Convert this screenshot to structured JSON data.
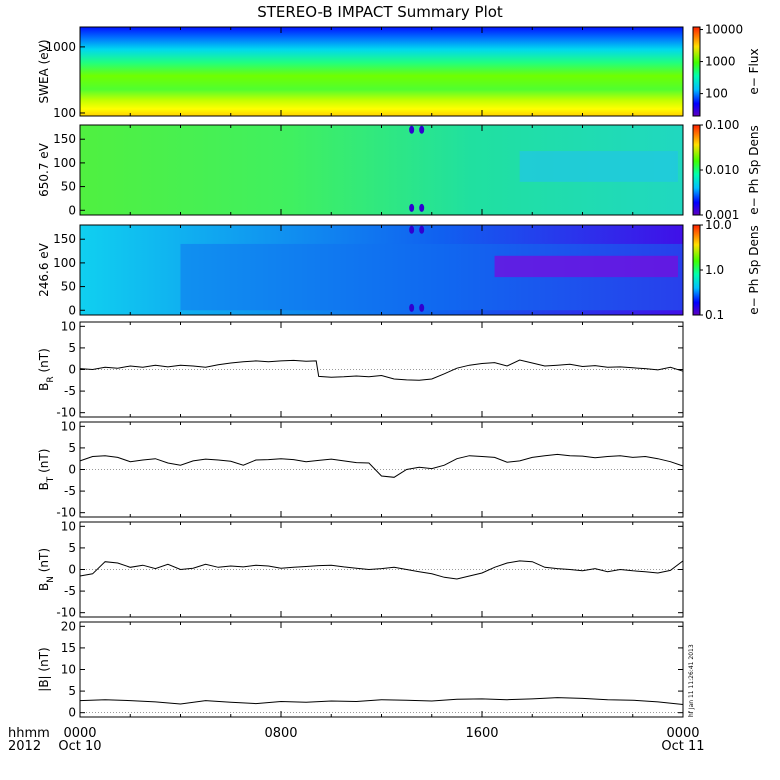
{
  "title": "STEREO-B IMPACT Summary Plot",
  "stamp": "hf Jan 11 11:26:41 2013",
  "x_axis": {
    "ticks": [
      "0000",
      "0800",
      "1600",
      "0000"
    ],
    "dates": [
      "Oct 10",
      "",
      "",
      "Oct 11"
    ],
    "unit_label": "hhmm",
    "year_label": "2012",
    "range_hours": [
      0,
      24
    ]
  },
  "colors": {
    "trace": "#000000"
  },
  "chart_data": [
    {
      "type": "heatmap",
      "name": "swea",
      "ylabel": "SWEA (eV)",
      "yscale": "log",
      "ylim": [
        90,
        2000
      ],
      "yticks": [
        {
          "v": 100,
          "label": "100"
        },
        {
          "v": 1000,
          "label": "1000"
        }
      ],
      "colorbar": {
        "label": "e− Flux",
        "scale": "log",
        "range": [
          20,
          12000
        ],
        "ticks": [
          {
            "v": 100,
            "label": "100"
          },
          {
            "v": 1000,
            "label": "1000"
          },
          {
            "v": 10000,
            "label": "10000"
          }
        ]
      }
    },
    {
      "type": "heatmap",
      "name": "pad650",
      "ylabel": "650.7 eV",
      "yscale": "linear",
      "ylim": [
        -10,
        180
      ],
      "yticks": [
        {
          "v": 0,
          "label": "0"
        },
        {
          "v": 50,
          "label": "50"
        },
        {
          "v": 100,
          "label": "100"
        },
        {
          "v": 150,
          "label": "150"
        }
      ],
      "colorbar": {
        "label": "e− Ph Sp Dens",
        "scale": "log",
        "range": [
          0.001,
          0.1
        ],
        "ticks": [
          {
            "v": 0.001,
            "label": "0.001"
          },
          {
            "v": 0.01,
            "label": "0.010"
          },
          {
            "v": 0.1,
            "label": "0.100"
          }
        ]
      }
    },
    {
      "type": "heatmap",
      "name": "pad246",
      "ylabel": "246.6 eV",
      "yscale": "linear",
      "ylim": [
        -10,
        180
      ],
      "yticks": [
        {
          "v": 0,
          "label": "0"
        },
        {
          "v": 50,
          "label": "50"
        },
        {
          "v": 100,
          "label": "100"
        },
        {
          "v": 150,
          "label": "150"
        }
      ],
      "colorbar": {
        "label": "e− Ph Sp Dens",
        "scale": "log",
        "range": [
          0.1,
          10
        ],
        "ticks": [
          {
            "v": 0.1,
            "label": "0.1"
          },
          {
            "v": 1,
            "label": "1.0"
          },
          {
            "v": 10,
            "label": "10.0"
          }
        ]
      }
    },
    {
      "type": "line",
      "name": "br",
      "ylabel": "B",
      "ylabel_sub": "R",
      "ylabel_unit": "(nT)",
      "ylim": [
        -11,
        11
      ],
      "yticks": [
        -10,
        -5,
        0,
        5,
        10
      ],
      "x": [
        0,
        0.5,
        1,
        1.5,
        2,
        2.5,
        3,
        3.5,
        4,
        4.5,
        5,
        5.5,
        6,
        6.5,
        7,
        7.5,
        8,
        8.5,
        9,
        9.4,
        9.5,
        10,
        10.5,
        11,
        11.5,
        12,
        12.5,
        13,
        13.5,
        14,
        14.5,
        15,
        15.5,
        16,
        16.5,
        17,
        17.5,
        18,
        18.5,
        19,
        19.5,
        20,
        20.5,
        21,
        21.5,
        22,
        22.5,
        23,
        23.5,
        24
      ],
      "y": [
        0.2,
        0.0,
        0.5,
        0.3,
        0.8,
        0.5,
        1.0,
        0.6,
        1.0,
        0.8,
        0.5,
        1.1,
        1.5,
        1.8,
        2.0,
        1.8,
        2.0,
        2.1,
        1.9,
        2.0,
        -1.6,
        -1.8,
        -1.7,
        -1.5,
        -1.7,
        -1.4,
        -2.2,
        -2.4,
        -2.5,
        -2.2,
        -1.0,
        0.3,
        1.0,
        1.4,
        1.6,
        0.8,
        2.2,
        1.5,
        0.8,
        1.0,
        1.2,
        0.7,
        0.9,
        0.5,
        0.6,
        0.4,
        0.2,
        -0.1,
        0.5,
        -0.4
      ]
    },
    {
      "type": "line",
      "name": "bt",
      "ylabel": "B",
      "ylabel_sub": "T",
      "ylabel_unit": "(nT)",
      "ylim": [
        -11,
        11
      ],
      "yticks": [
        -10,
        -5,
        0,
        5,
        10
      ],
      "x": [
        0,
        0.5,
        1,
        1.5,
        2,
        2.5,
        3,
        3.5,
        4,
        4.5,
        5,
        5.5,
        6,
        6.5,
        7,
        7.5,
        8,
        8.5,
        9,
        9.5,
        10,
        10.5,
        11,
        11.5,
        12,
        12.5,
        13,
        13.5,
        14,
        14.5,
        15,
        15.5,
        16,
        16.5,
        17,
        17.5,
        18,
        18.5,
        19,
        19.5,
        20,
        20.5,
        21,
        21.5,
        22,
        22.5,
        23,
        23.5,
        24
      ],
      "y": [
        2.0,
        3.0,
        3.2,
        2.8,
        1.8,
        2.2,
        2.5,
        1.5,
        1.0,
        2.0,
        2.4,
        2.2,
        1.9,
        1.0,
        2.2,
        2.3,
        2.5,
        2.3,
        1.8,
        2.1,
        2.4,
        2.0,
        1.6,
        1.5,
        -1.5,
        -1.8,
        0.0,
        0.5,
        0.2,
        1.0,
        2.5,
        3.2,
        3.0,
        2.8,
        1.7,
        2.0,
        2.8,
        3.2,
        3.5,
        3.2,
        3.1,
        2.7,
        3.0,
        3.2,
        2.8,
        3.0,
        2.5,
        1.8,
        0.8
      ]
    },
    {
      "type": "line",
      "name": "bn",
      "ylabel": "B",
      "ylabel_sub": "N",
      "ylabel_unit": "(nT)",
      "ylim": [
        -11,
        11
      ],
      "yticks": [
        -10,
        -5,
        0,
        5,
        10
      ],
      "x": [
        0,
        0.5,
        1,
        1.5,
        2,
        2.5,
        3,
        3.5,
        4,
        4.5,
        5,
        5.5,
        6,
        6.5,
        7,
        7.5,
        8,
        8.5,
        9,
        9.5,
        10,
        10.5,
        11,
        11.5,
        12,
        12.5,
        13,
        13.5,
        14,
        14.5,
        15,
        15.5,
        16,
        16.5,
        17,
        17.5,
        18,
        18.5,
        19,
        19.5,
        20,
        20.5,
        21,
        21.5,
        22,
        22.5,
        23,
        23.5,
        24
      ],
      "y": [
        -1.5,
        -1.0,
        1.8,
        1.5,
        0.5,
        1.0,
        0.2,
        1.2,
        0.0,
        0.3,
        1.2,
        0.5,
        0.8,
        0.6,
        1.0,
        0.8,
        0.3,
        0.5,
        0.7,
        0.9,
        1.0,
        0.6,
        0.3,
        0.0,
        0.2,
        0.5,
        0.0,
        -0.5,
        -1.0,
        -1.8,
        -2.2,
        -1.5,
        -0.8,
        0.5,
        1.5,
        2.0,
        1.8,
        0.5,
        0.2,
        0.0,
        -0.3,
        0.2,
        -0.5,
        0.0,
        -0.3,
        -0.5,
        -0.8,
        -0.2,
        2.0
      ]
    },
    {
      "type": "line",
      "name": "bmag",
      "ylabel": "|B| (nT)",
      "ylim": [
        -1,
        21
      ],
      "yticks": [
        0,
        5,
        10,
        15,
        20
      ],
      "x": [
        0,
        1,
        2,
        3,
        4,
        5,
        6,
        7,
        8,
        9,
        10,
        11,
        12,
        13,
        14,
        15,
        16,
        17,
        18,
        19,
        20,
        21,
        22,
        23,
        24
      ],
      "y": [
        2.8,
        3.0,
        2.8,
        2.5,
        2.0,
        2.8,
        2.4,
        2.1,
        2.6,
        2.4,
        2.7,
        2.6,
        3.0,
        2.9,
        2.7,
        3.1,
        3.2,
        3.0,
        3.2,
        3.5,
        3.3,
        3.0,
        2.9,
        2.5,
        1.9
      ]
    }
  ]
}
